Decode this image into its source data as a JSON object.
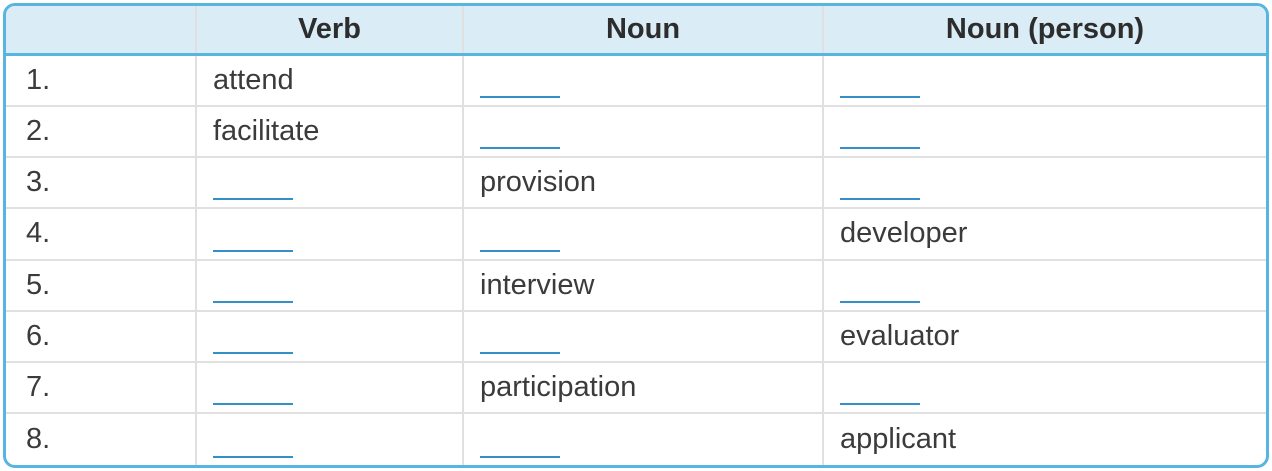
{
  "colors": {
    "accent_border": "#58b4e0",
    "header_background": "#daedf6",
    "row_divider": "#e0e0e0",
    "blank_underline": "#3490c6",
    "header_text": "#2d2d2d",
    "body_text": "#3b3b3b",
    "page_background": "#ffffff"
  },
  "table": {
    "columns": [
      {
        "id": "num",
        "label": ""
      },
      {
        "id": "verb",
        "label": "Verb"
      },
      {
        "id": "noun",
        "label": "Noun"
      },
      {
        "id": "person",
        "label": "Noun (person)"
      }
    ],
    "rows": [
      {
        "num": "1.",
        "verb": "attend",
        "noun": "",
        "person": ""
      },
      {
        "num": "2.",
        "verb": "facilitate",
        "noun": "",
        "person": ""
      },
      {
        "num": "3.",
        "verb": "",
        "noun": "provision",
        "person": ""
      },
      {
        "num": "4.",
        "verb": "",
        "noun": "",
        "person": "developer"
      },
      {
        "num": "5.",
        "verb": "",
        "noun": "interview",
        "person": ""
      },
      {
        "num": "6.",
        "verb": "",
        "noun": "",
        "person": "evaluator"
      },
      {
        "num": "7.",
        "verb": "",
        "noun": "participation",
        "person": ""
      },
      {
        "num": "8.",
        "verb": "",
        "noun": "",
        "person": "applicant"
      }
    ]
  }
}
